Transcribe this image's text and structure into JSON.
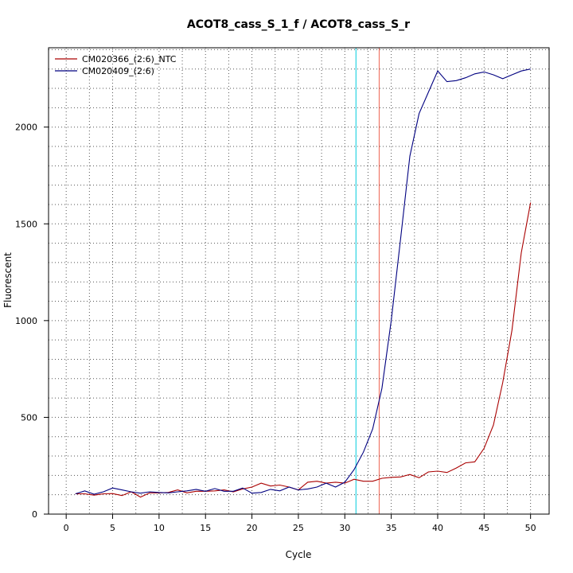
{
  "chart_data": {
    "type": "line",
    "title": "ACOT8_cass_S_1_f / ACOT8_cass_S_r",
    "xlabel": "Cycle",
    "ylabel": "Fluorescent",
    "xlim": [
      -1.9,
      52
    ],
    "ylim": [
      0,
      2410
    ],
    "xticks": [
      "0",
      "5",
      "10",
      "15",
      "20",
      "25",
      "30",
      "35",
      "40",
      "45",
      "50"
    ],
    "yticks": [
      "0",
      "500",
      "1000",
      "1500",
      "2000"
    ],
    "grid": true,
    "grid_style": "dotted",
    "legend_position": "top-left",
    "vertical_lines": [
      {
        "x": 31.2,
        "color": "#00ccdd"
      },
      {
        "x": 33.7,
        "color": "#ee6655"
      }
    ],
    "series": [
      {
        "name": "CM020366_(2:6)_NTC",
        "color": "#aa0000",
        "x": [
          1,
          2,
          3,
          4,
          5,
          6,
          7,
          8,
          9,
          10,
          11,
          12,
          13,
          14,
          15,
          16,
          17,
          18,
          19,
          20,
          21,
          22,
          23,
          24,
          25,
          26,
          27,
          28,
          29,
          30,
          31,
          32,
          33,
          34,
          35,
          36,
          37,
          38,
          39,
          40,
          41,
          42,
          43,
          44,
          45,
          46,
          47,
          48,
          49,
          50
        ],
        "values": [
          105,
          105,
          98,
          105,
          106,
          96,
          115,
          88,
          110,
          110,
          112,
          125,
          110,
          118,
          118,
          120,
          125,
          115,
          130,
          140,
          160,
          145,
          150,
          140,
          125,
          165,
          170,
          160,
          165,
          160,
          180,
          170,
          170,
          185,
          190,
          192,
          205,
          188,
          218,
          222,
          215,
          238,
          265,
          270,
          340,
          460,
          680,
          950,
          1350,
          1610
        ]
      },
      {
        "name": "CM020409_(2:6)",
        "color": "#000080",
        "x": [
          1,
          2,
          3,
          4,
          5,
          6,
          7,
          8,
          9,
          10,
          11,
          12,
          13,
          14,
          15,
          16,
          17,
          18,
          19,
          20,
          21,
          22,
          23,
          24,
          25,
          26,
          27,
          28,
          29,
          30,
          31,
          32,
          33,
          34,
          35,
          36,
          37,
          38,
          39,
          40,
          41,
          42,
          43,
          44,
          45,
          46,
          47,
          48,
          49,
          50
        ],
        "values": [
          105,
          120,
          103,
          115,
          135,
          125,
          115,
          108,
          115,
          112,
          110,
          115,
          120,
          128,
          118,
          132,
          118,
          118,
          135,
          108,
          112,
          128,
          120,
          140,
          125,
          130,
          140,
          160,
          140,
          165,
          230,
          320,
          440,
          650,
          1000,
          1420,
          1850,
          2070,
          2180,
          2290,
          2235,
          2240,
          2255,
          2275,
          2285,
          2270,
          2250,
          2270,
          2290,
          2300
        ]
      }
    ]
  }
}
